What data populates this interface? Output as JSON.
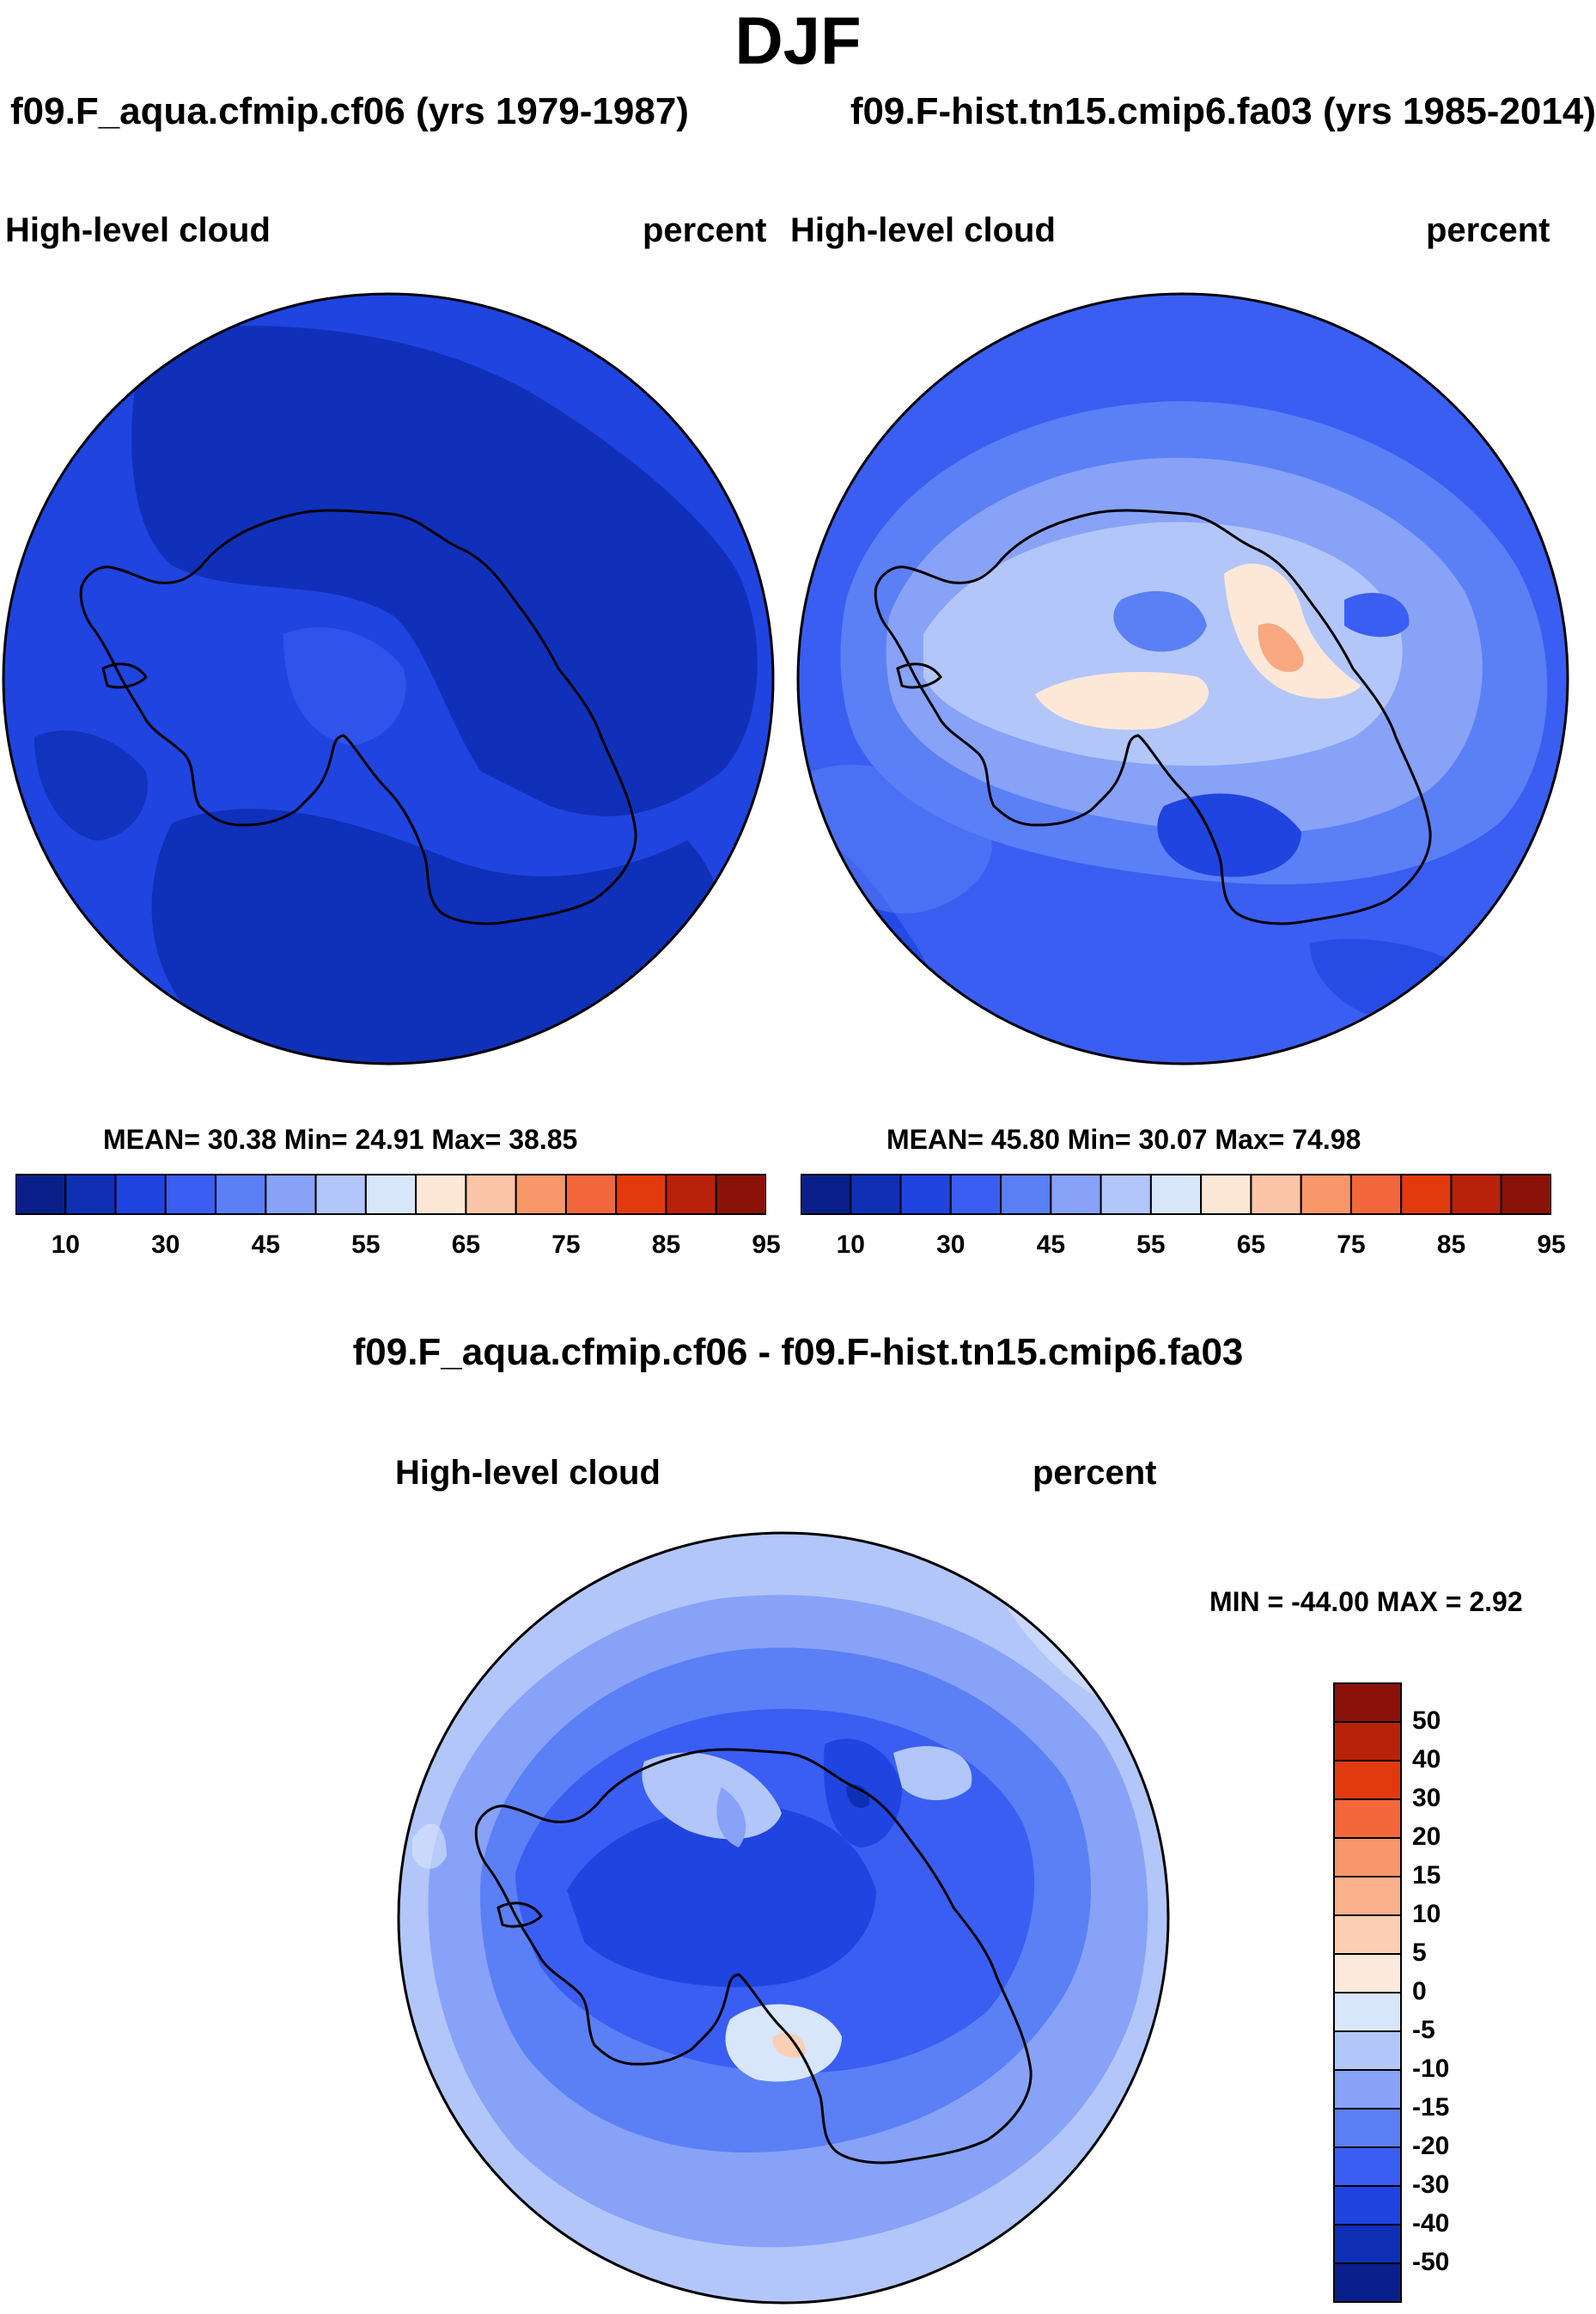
{
  "page_title": "DJF",
  "panels": [
    {
      "id": "left",
      "case": "f09.F_aqua.cfmip.cf06 (yrs 1979-1987)",
      "variable": "High-level cloud",
      "units": "percent",
      "stats": "MEAN=  30.38  Min=  24.91  Max=  38.85"
    },
    {
      "id": "right",
      "case": "f09.F-hist.tn15.cmip6.fa03 (yrs 1985-2014)",
      "variable": "High-level cloud",
      "units": "percent",
      "stats": "MEAN=  45.80  Min=  30.07  Max=  74.98"
    },
    {
      "id": "diff",
      "case": "f09.F_aqua.cfmip.cf06 - f09.F-hist.tn15.cmip6.fa03",
      "variable": "High-level cloud",
      "units": "percent",
      "stats": "MIN = -44.00 MAX =   2.92"
    }
  ],
  "colorbars": {
    "abs_ticks": [
      "10",
      "30",
      "45",
      "55",
      "65",
      "75",
      "85",
      "95"
    ],
    "abs_colors": [
      "#0a1f8a",
      "#0f2fb5",
      "#1f44e0",
      "#3a5ef2",
      "#5b7ff5",
      "#87a2f7",
      "#b3c6fa",
      "#d8e6fc",
      "#fde8d7",
      "#fbc6a8",
      "#f8976a",
      "#f2673b",
      "#e23a0f",
      "#b8220a",
      "#8a1208"
    ],
    "diff_ticks": [
      "50",
      "40",
      "30",
      "20",
      "15",
      "10",
      "5",
      "0",
      "-5",
      "-10",
      "-15",
      "-20",
      "-30",
      "-40",
      "-50"
    ],
    "diff_colors": [
      "#8a1208",
      "#b8220a",
      "#e23a0f",
      "#f2673b",
      "#f8976a",
      "#fbb08c",
      "#fbcfb4",
      "#fde9dc",
      "#d8e6fc",
      "#b3c6fa",
      "#87a2f7",
      "#5b7ff5",
      "#3a5ef2",
      "#1f44e0",
      "#0f2fb5",
      "#0a1f8a"
    ]
  },
  "chart_data": [
    {
      "type": "heatmap",
      "title": "High-level cloud",
      "units": "percent",
      "projection": "south polar stereographic",
      "summary": {
        "mean": 30.38,
        "min": 24.91,
        "max": 38.85
      },
      "contour_levels": [
        10,
        15,
        20,
        30,
        35,
        40,
        45,
        50,
        55,
        60,
        65,
        70,
        75,
        80,
        85,
        90,
        95
      ]
    },
    {
      "type": "heatmap",
      "title": "High-level cloud",
      "units": "percent",
      "projection": "south polar stereographic",
      "summary": {
        "mean": 45.8,
        "min": 30.07,
        "max": 74.98
      },
      "contour_levels": [
        10,
        15,
        20,
        30,
        35,
        40,
        45,
        50,
        55,
        60,
        65,
        70,
        75,
        80,
        85,
        90,
        95
      ]
    },
    {
      "type": "heatmap",
      "title": "High-level cloud",
      "units": "percent",
      "projection": "south polar stereographic",
      "summary": {
        "min": -44.0,
        "max": 2.92
      },
      "contour_levels": [
        -50,
        -40,
        -30,
        -20,
        -15,
        -10,
        -5,
        0,
        5,
        10,
        15,
        20,
        30,
        40,
        50
      ]
    }
  ]
}
